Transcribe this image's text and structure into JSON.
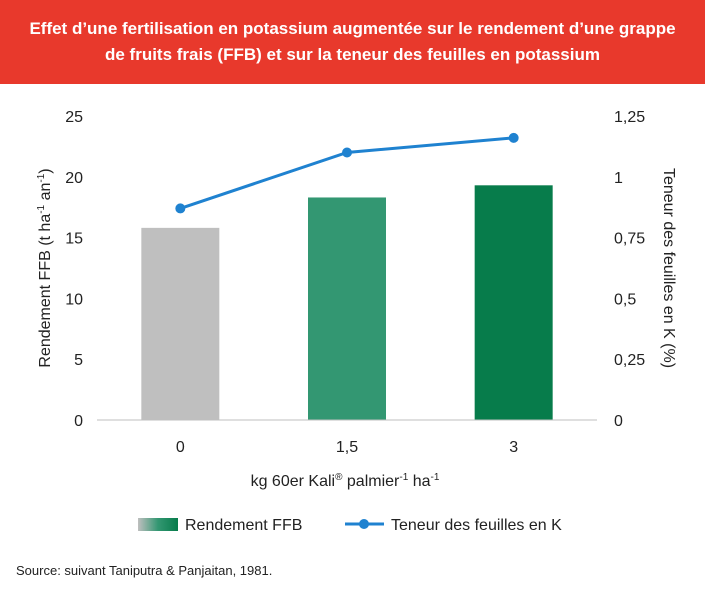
{
  "header": {
    "title": "Effet d’une fertilisation en potassium augmentée sur le rendement d’une grappe de fruits frais (FFB) et sur la teneur des feuilles en potassium"
  },
  "source": "Source: suivant Taniputra & Panjaitan, 1981.",
  "colors": {
    "header_bg": "#e8392c",
    "bar_0": "#bfbfbf",
    "bar_1": "#339772",
    "bar_2": "#077c4b",
    "line": "#1f82d0",
    "axis": "#bfbfbf"
  },
  "chart_data": {
    "type": "bar",
    "categories": [
      "0",
      "1,5",
      "3"
    ],
    "series": [
      {
        "name": "Rendement FFB",
        "type": "bar",
        "axis": "left",
        "values": [
          15.8,
          18.3,
          19.3
        ]
      },
      {
        "name": "Teneur des feuilles en K",
        "type": "line",
        "axis": "right",
        "values": [
          0.87,
          1.1,
          1.16
        ]
      }
    ],
    "ylim": [
      0,
      25
    ],
    "yticks": [
      "0",
      "5",
      "10",
      "15",
      "20",
      "25"
    ],
    "y2lim": [
      0,
      1.25
    ],
    "y2ticks": [
      "0",
      "0,25",
      "0,5",
      "0,75",
      "1",
      "1,25"
    ],
    "xlabel": {
      "text": "kg 60er Kali",
      "sup1": "®",
      "mid": " palmier",
      "sup2": "-1",
      "end": " ha",
      "sup3": "-1"
    },
    "ylabel": {
      "text": "Rendement FFB (t ha",
      "sup1": "-1",
      "mid": " an",
      "sup2": "-1",
      "end": ")"
    },
    "y2label": "Teneur des feuilles en K (%)",
    "grid": false,
    "legend": "bottom"
  }
}
